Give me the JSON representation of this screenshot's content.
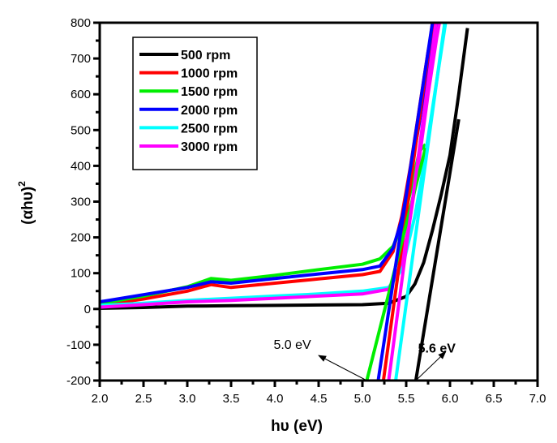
{
  "chart_data": {
    "type": "line",
    "title": "",
    "xlabel": "hυ (eV)",
    "ylabel_main": "(αhυ)",
    "ylabel_sup": "2",
    "xlim": [
      2.0,
      7.0
    ],
    "ylim": [
      -200,
      800
    ],
    "xticks": [
      "2.0",
      "2.5",
      "3.0",
      "3.5",
      "4.0",
      "4.5",
      "5.0",
      "5.5",
      "6.0",
      "6.5",
      "7.0"
    ],
    "xtick_values": [
      2.0,
      2.5,
      3.0,
      3.5,
      4.0,
      4.5,
      5.0,
      5.5,
      6.0,
      6.5,
      7.0
    ],
    "yticks": [
      "-200",
      "-100",
      "0",
      "100",
      "200",
      "300",
      "400",
      "500",
      "600",
      "700",
      "800"
    ],
    "ytick_values": [
      -200,
      -100,
      0,
      100,
      200,
      300,
      400,
      500,
      600,
      700,
      800
    ],
    "grid": false,
    "legend_position": "top-left",
    "series": [
      {
        "name": "500 rpm",
        "color": "#000000",
        "x": [
          2.0,
          2.5,
          3.0,
          3.5,
          4.0,
          4.5,
          5.0,
          5.3,
          5.5,
          5.6,
          5.7,
          5.8,
          5.9,
          6.0,
          6.1,
          6.2
        ],
        "y": [
          2,
          4,
          8,
          9,
          10,
          11,
          12,
          16,
          35,
          70,
          130,
          220,
          320,
          430,
          600,
          785
        ]
      },
      {
        "name": "1000 rpm",
        "color": "#ff0000",
        "x": [
          2.0,
          2.5,
          3.0,
          3.27,
          3.5,
          4.0,
          4.5,
          5.0,
          5.2,
          5.35,
          5.45,
          5.55,
          5.65,
          5.75,
          5.82
        ],
        "y": [
          10,
          28,
          50,
          68,
          60,
          72,
          84,
          96,
          105,
          160,
          260,
          400,
          560,
          720,
          800
        ]
      },
      {
        "name": "1500 rpm",
        "color": "#00ee00",
        "x": [
          2.0,
          2.5,
          3.0,
          3.27,
          3.5,
          4.0,
          4.5,
          5.0,
          5.2,
          5.35,
          5.45,
          5.55,
          5.65,
          5.72
        ],
        "y": [
          15,
          36,
          62,
          85,
          80,
          94,
          110,
          125,
          140,
          175,
          230,
          330,
          440,
          460
        ]
      },
      {
        "name": "2000 rpm",
        "color": "#0000ff",
        "x": [
          2.0,
          2.5,
          3.0,
          3.27,
          3.5,
          4.0,
          4.5,
          5.0,
          5.2,
          5.35,
          5.45,
          5.55,
          5.65,
          5.75,
          5.85
        ],
        "y": [
          20,
          40,
          60,
          76,
          72,
          85,
          98,
          110,
          120,
          170,
          250,
          380,
          520,
          680,
          800
        ]
      },
      {
        "name": "2500 rpm",
        "color": "#00ffff",
        "x": [
          2.0,
          2.5,
          3.0,
          3.5,
          4.0,
          4.5,
          5.0,
          5.3,
          5.45,
          5.6,
          5.7,
          5.8,
          5.9,
          5.95
        ],
        "y": [
          10,
          16,
          24,
          30,
          36,
          42,
          50,
          60,
          110,
          260,
          400,
          560,
          720,
          800
        ]
      },
      {
        "name": "3000 rpm",
        "color": "#ff00ff",
        "x": [
          2.0,
          2.5,
          3.0,
          3.5,
          4.0,
          4.5,
          5.0,
          5.3,
          5.45,
          5.55,
          5.65,
          5.75,
          5.85,
          5.88
        ],
        "y": [
          5,
          12,
          20,
          24,
          30,
          36,
          42,
          55,
          130,
          260,
          420,
          600,
          760,
          800
        ]
      }
    ],
    "tangents": [
      {
        "series": "500 rpm",
        "color": "#000000",
        "x": [
          5.61,
          6.1
        ],
        "y": [
          -200,
          530
        ]
      },
      {
        "series": "1000 rpm",
        "color": "#ff0000",
        "x": [
          5.24,
          5.8
        ],
        "y": [
          -200,
          800
        ]
      },
      {
        "series": "1500 rpm",
        "color": "#00ee00",
        "x": [
          5.05,
          5.72
        ],
        "y": [
          -200,
          450
        ]
      },
      {
        "series": "2000 rpm",
        "color": "#0000ff",
        "x": [
          5.18,
          5.8
        ],
        "y": [
          -200,
          800
        ]
      },
      {
        "series": "2500 rpm",
        "color": "#00ffff",
        "x": [
          5.38,
          5.94
        ],
        "y": [
          -200,
          800
        ]
      },
      {
        "series": "3000 rpm",
        "color": "#ff00ff",
        "x": [
          5.3,
          5.84
        ],
        "y": [
          -200,
          800
        ]
      }
    ],
    "annotations": [
      {
        "text": "5.0 eV",
        "x": 4.2,
        "y": -100,
        "arrow_from": [
          5.05,
          -200
        ],
        "arrow_to": [
          4.5,
          -130
        ],
        "bold": false
      },
      {
        "text": "5.6 eV",
        "x": 5.85,
        "y": -110,
        "arrow_from": [
          5.61,
          -200
        ],
        "arrow_to": [
          5.95,
          -120
        ],
        "bold": true
      }
    ]
  }
}
